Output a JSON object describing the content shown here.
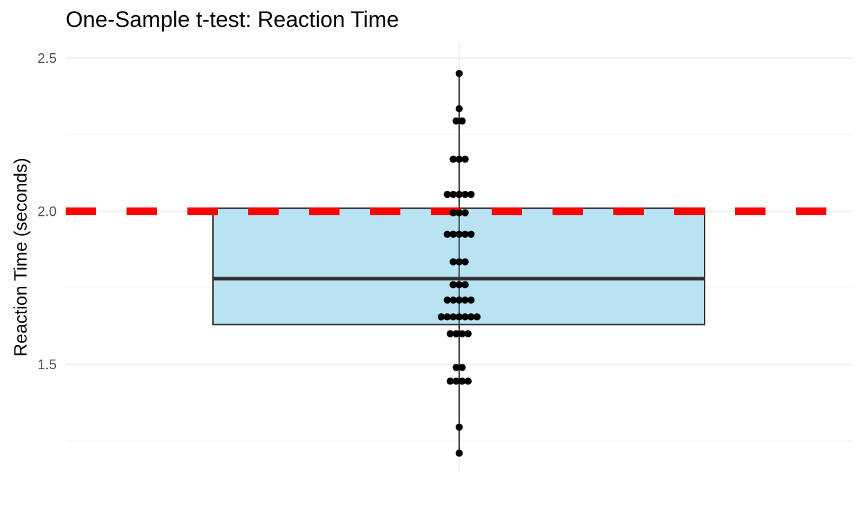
{
  "chart_data": {
    "type": "box",
    "title": "One-Sample t-test: Reaction Time",
    "xlabel": "",
    "ylabel": "Reaction Time (seconds)",
    "ylim": [
      1.15,
      2.55
    ],
    "y_ticks": [
      "1.5",
      "2.0",
      "2.5"
    ],
    "grid": true,
    "reference_line": {
      "value": 2.0,
      "color": "#ff0000",
      "style": "dashed"
    },
    "box": {
      "q1": 1.63,
      "median": 1.78,
      "q3": 2.01,
      "whisker_low": 1.21,
      "whisker_high": 2.45,
      "fill": "#b9e2f2",
      "stroke": "#333333"
    },
    "points": [
      {
        "y": 2.45,
        "n": 1
      },
      {
        "y": 2.335,
        "n": 1
      },
      {
        "y": 2.295,
        "n": 2
      },
      {
        "y": 2.17,
        "n": 3
      },
      {
        "y": 2.055,
        "n": 5
      },
      {
        "y": 1.995,
        "n": 3
      },
      {
        "y": 1.925,
        "n": 5
      },
      {
        "y": 1.835,
        "n": 3
      },
      {
        "y": 1.76,
        "n": 3
      },
      {
        "y": 1.71,
        "n": 5
      },
      {
        "y": 1.655,
        "n": 7
      },
      {
        "y": 1.6,
        "n": 4
      },
      {
        "y": 1.49,
        "n": 2
      },
      {
        "y": 1.445,
        "n": 4
      },
      {
        "y": 1.295,
        "n": 1
      },
      {
        "y": 1.21,
        "n": 1
      }
    ],
    "point_color": "#000000"
  }
}
